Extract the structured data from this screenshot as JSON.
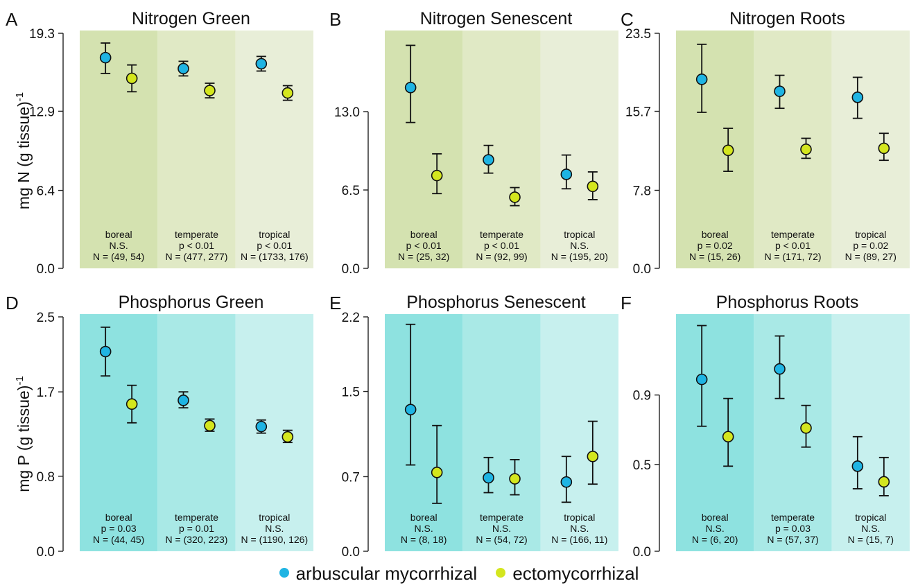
{
  "colors": {
    "am": "#1fb4e3",
    "ecm": "#d4e61e",
    "nitrogen_bg": [
      "#d4e2b0",
      "#e0e9c5",
      "#e8eed8"
    ],
    "phosphorus_bg": [
      "#8ee2e0",
      "#a9e9e6",
      "#c7f0ee"
    ]
  },
  "legend": {
    "am_label": "arbuscular mycorrhizal",
    "ecm_label": "ectomycorrhizal"
  },
  "chart_data": [
    {
      "type": "scatter",
      "panel": "A",
      "title": "Nitrogen Green",
      "ylabel": "mg N (g tissue)",
      "ylabel_sup": "-1",
      "ylim": [
        0,
        19.3
      ],
      "yticks": [
        "0.0",
        "6.4",
        "12.9",
        "19.3"
      ],
      "bg": "nitrogen_bg",
      "biomes": [
        {
          "name": "boreal",
          "stat": "N.S.",
          "n": "N = (49, 54)",
          "am": [
            17.3,
            16.0,
            18.5
          ],
          "ecm": [
            15.6,
            14.5,
            16.7
          ]
        },
        {
          "name": "temperate",
          "stat": "p < 0.01",
          "n": "N = (477, 277)",
          "am": [
            16.4,
            15.8,
            17.0
          ],
          "ecm": [
            14.6,
            14.0,
            15.2
          ]
        },
        {
          "name": "tropical",
          "stat": "p < 0.01",
          "n": "N = (1733, 176)",
          "am": [
            16.8,
            16.2,
            17.4
          ],
          "ecm": [
            14.4,
            13.8,
            15.0
          ]
        }
      ]
    },
    {
      "type": "scatter",
      "panel": "B",
      "title": "Nitrogen Senescent",
      "ylabel": "",
      "ylim": [
        0,
        19.5
      ],
      "yticks": [
        "0.0",
        "6.5",
        "13.0"
      ],
      "bg": "nitrogen_bg",
      "biomes": [
        {
          "name": "boreal",
          "stat": "p < 0.01",
          "n": "N = (25, 32)",
          "am": [
            15.0,
            12.1,
            18.5
          ],
          "ecm": [
            7.7,
            6.2,
            9.5
          ]
        },
        {
          "name": "temperate",
          "stat": "p < 0.01",
          "n": "N = (92, 99)",
          "am": [
            9.0,
            7.9,
            10.2
          ],
          "ecm": [
            5.9,
            5.2,
            6.7
          ]
        },
        {
          "name": "tropical",
          "stat": "N.S.",
          "n": "N = (195, 20)",
          "am": [
            7.8,
            6.6,
            9.4
          ],
          "ecm": [
            6.8,
            5.7,
            8.0
          ]
        }
      ]
    },
    {
      "type": "scatter",
      "panel": "C",
      "title": "Nitrogen Roots",
      "ylabel": "",
      "ylim": [
        0,
        23.5
      ],
      "yticks": [
        "0.0",
        "7.8",
        "15.7",
        "23.5"
      ],
      "bg": "nitrogen_bg",
      "biomes": [
        {
          "name": "boreal",
          "stat": "p = 0.02",
          "n": "N = (15, 26)",
          "am": [
            18.9,
            15.6,
            22.4
          ],
          "ecm": [
            11.8,
            9.7,
            14.0
          ]
        },
        {
          "name": "temperate",
          "stat": "p < 0.01",
          "n": "N = (171, 72)",
          "am": [
            17.7,
            16.0,
            19.3
          ],
          "ecm": [
            11.9,
            11.0,
            13.0
          ]
        },
        {
          "name": "tropical",
          "stat": "p = 0.02",
          "n": "N = (89, 27)",
          "am": [
            17.1,
            15.0,
            19.1
          ],
          "ecm": [
            12.0,
            10.8,
            13.5
          ]
        }
      ]
    },
    {
      "type": "scatter",
      "panel": "D",
      "title": "Phosphorus Green",
      "ylabel": "mg P (g tissue)",
      "ylabel_sup": "-1",
      "ylim": [
        0,
        2.5
      ],
      "yticks": [
        "0.0",
        "0.8",
        "1.7",
        "2.5"
      ],
      "bg": "phosphorus_bg",
      "biomes": [
        {
          "name": "boreal",
          "stat": "p = 0.03",
          "n": "N = (44, 45)",
          "am": [
            2.13,
            1.87,
            2.39
          ],
          "ecm": [
            1.57,
            1.37,
            1.77
          ]
        },
        {
          "name": "temperate",
          "stat": "p = 0.01",
          "n": "N = (320, 223)",
          "am": [
            1.61,
            1.53,
            1.7
          ],
          "ecm": [
            1.34,
            1.28,
            1.41
          ]
        },
        {
          "name": "tropical",
          "stat": "N.S.",
          "n": "N = (1190, 126)",
          "am": [
            1.33,
            1.26,
            1.4
          ],
          "ecm": [
            1.22,
            1.16,
            1.29
          ]
        }
      ]
    },
    {
      "type": "scatter",
      "panel": "E",
      "title": "Phosphorus Senescent",
      "ylabel": "",
      "ylim": [
        0,
        2.2
      ],
      "yticks": [
        "0.0",
        "0.7",
        "1.5",
        "2.2"
      ],
      "bg": "phosphorus_bg",
      "biomes": [
        {
          "name": "boreal",
          "stat": "N.S.",
          "n": "N = (8, 18)",
          "am": [
            1.33,
            0.81,
            2.13
          ],
          "ecm": [
            0.74,
            0.45,
            1.18
          ]
        },
        {
          "name": "temperate",
          "stat": "N.S.",
          "n": "N = (54, 72)",
          "am": [
            0.69,
            0.55,
            0.88
          ],
          "ecm": [
            0.68,
            0.53,
            0.86
          ]
        },
        {
          "name": "tropical",
          "stat": "N.S.",
          "n": "N = (166, 11)",
          "am": [
            0.65,
            0.46,
            0.89
          ],
          "ecm": [
            0.89,
            0.63,
            1.22
          ]
        }
      ]
    },
    {
      "type": "scatter",
      "panel": "F",
      "title": "Phosphorus Roots",
      "ylabel": "",
      "ylim": [
        0,
        1.35
      ],
      "yticks": [
        "0.0",
        "0.5",
        "0.9"
      ],
      "bg": "phosphorus_bg",
      "biomes": [
        {
          "name": "boreal",
          "stat": "N.S.",
          "n": "N = (6, 20)",
          "am": [
            0.99,
            0.72,
            1.3
          ],
          "ecm": [
            0.66,
            0.49,
            0.88
          ]
        },
        {
          "name": "temperate",
          "stat": "p = 0.03",
          "n": "N = (57, 37)",
          "am": [
            1.05,
            0.88,
            1.24
          ],
          "ecm": [
            0.71,
            0.6,
            0.84
          ]
        },
        {
          "name": "tropical",
          "stat": "N.S.",
          "n": "N = (15, 7)",
          "am": [
            0.49,
            0.36,
            0.66
          ],
          "ecm": [
            0.4,
            0.32,
            0.54
          ]
        }
      ]
    }
  ]
}
